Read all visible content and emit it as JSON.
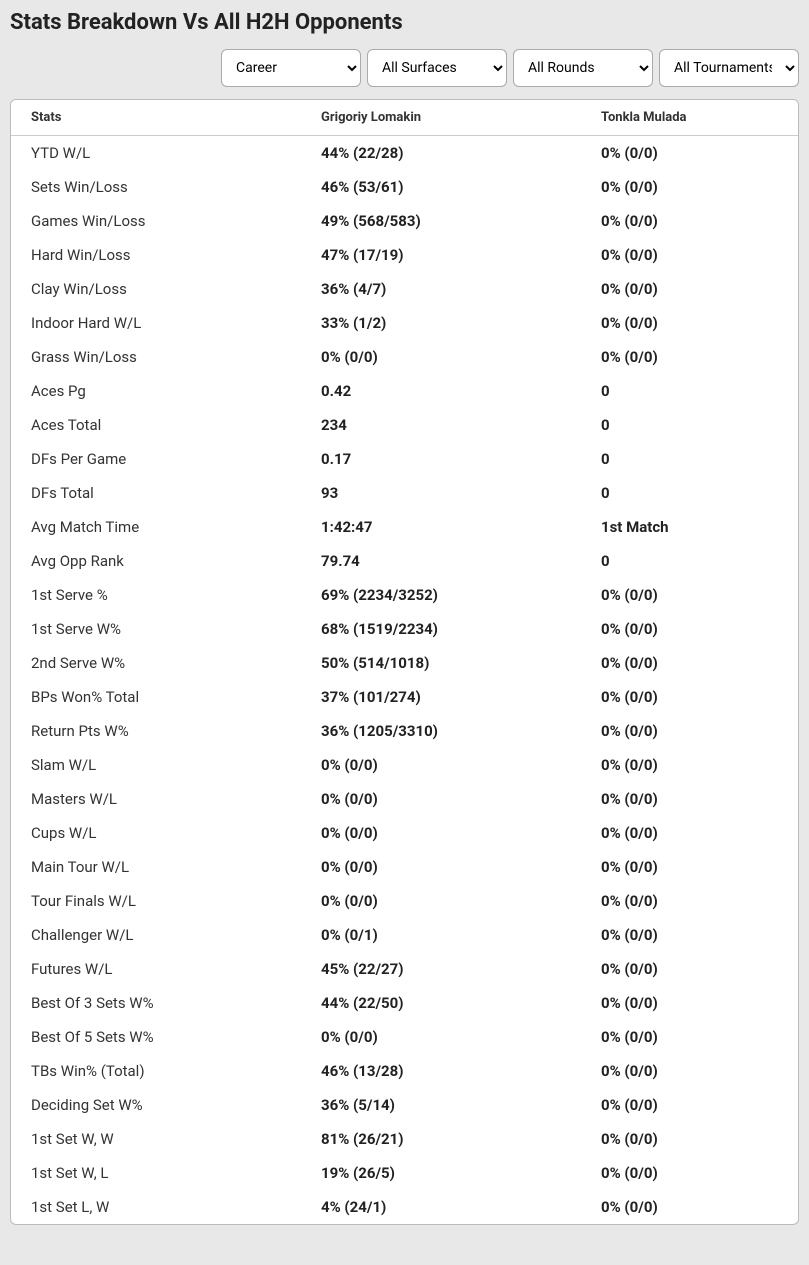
{
  "title": "Stats Breakdown Vs All H2H Opponents",
  "filters": {
    "career": {
      "selected": "Career"
    },
    "surfaces": {
      "selected": "All Surfaces"
    },
    "rounds": {
      "selected": "All Rounds"
    },
    "tournaments": {
      "selected": "All Tournaments"
    }
  },
  "columns": {
    "stats": "Stats",
    "p1": "Grigoriy Lomakin",
    "p2": "Tonkla Mulada"
  },
  "rows": [
    {
      "label": "YTD W/L",
      "p1": "44% (22/28)",
      "p2": "0% (0/0)"
    },
    {
      "label": "Sets Win/Loss",
      "p1": "46% (53/61)",
      "p2": "0% (0/0)"
    },
    {
      "label": "Games Win/Loss",
      "p1": "49% (568/583)",
      "p2": "0% (0/0)"
    },
    {
      "label": "Hard Win/Loss",
      "p1": "47% (17/19)",
      "p2": "0% (0/0)"
    },
    {
      "label": "Clay Win/Loss",
      "p1": "36% (4/7)",
      "p2": "0% (0/0)"
    },
    {
      "label": "Indoor Hard W/L",
      "p1": "33% (1/2)",
      "p2": "0% (0/0)"
    },
    {
      "label": "Grass Win/Loss",
      "p1": "0% (0/0)",
      "p2": "0% (0/0)"
    },
    {
      "label": "Aces Pg",
      "p1": "0.42",
      "p2": "0"
    },
    {
      "label": "Aces Total",
      "p1": "234",
      "p2": "0"
    },
    {
      "label": "DFs Per Game",
      "p1": "0.17",
      "p2": "0"
    },
    {
      "label": "DFs Total",
      "p1": "93",
      "p2": "0"
    },
    {
      "label": "Avg Match Time",
      "p1": "1:42:47",
      "p2": "1st Match"
    },
    {
      "label": "Avg Opp Rank",
      "p1": "79.74",
      "p2": "0"
    },
    {
      "label": "1st Serve %",
      "p1": "69% (2234/3252)",
      "p2": "0% (0/0)"
    },
    {
      "label": "1st Serve W%",
      "p1": "68% (1519/2234)",
      "p2": "0% (0/0)"
    },
    {
      "label": "2nd Serve W%",
      "p1": "50% (514/1018)",
      "p2": "0% (0/0)"
    },
    {
      "label": "BPs Won% Total",
      "p1": "37% (101/274)",
      "p2": "0% (0/0)"
    },
    {
      "label": "Return Pts W%",
      "p1": "36% (1205/3310)",
      "p2": "0% (0/0)"
    },
    {
      "label": "Slam W/L",
      "p1": "0% (0/0)",
      "p2": "0% (0/0)"
    },
    {
      "label": "Masters W/L",
      "p1": "0% (0/0)",
      "p2": "0% (0/0)"
    },
    {
      "label": "Cups W/L",
      "p1": "0% (0/0)",
      "p2": "0% (0/0)"
    },
    {
      "label": "Main Tour W/L",
      "p1": "0% (0/0)",
      "p2": "0% (0/0)"
    },
    {
      "label": "Tour Finals W/L",
      "p1": "0% (0/0)",
      "p2": "0% (0/0)"
    },
    {
      "label": "Challenger W/L",
      "p1": "0% (0/1)",
      "p2": "0% (0/0)"
    },
    {
      "label": "Futures W/L",
      "p1": "45% (22/27)",
      "p2": "0% (0/0)"
    },
    {
      "label": "Best Of 3 Sets W%",
      "p1": "44% (22/50)",
      "p2": "0% (0/0)"
    },
    {
      "label": "Best Of 5 Sets W%",
      "p1": "0% (0/0)",
      "p2": "0% (0/0)"
    },
    {
      "label": "TBs Win% (Total)",
      "p1": "46% (13/28)",
      "p2": "0% (0/0)"
    },
    {
      "label": "Deciding Set W%",
      "p1": "36% (5/14)",
      "p2": "0% (0/0)"
    },
    {
      "label": "1st Set W, W",
      "p1": "81% (26/21)",
      "p2": "0% (0/0)"
    },
    {
      "label": "1st Set W, L",
      "p1": "19% (26/5)",
      "p2": "0% (0/0)"
    },
    {
      "label": "1st Set L, W",
      "p1": "4% (24/1)",
      "p2": "0% (0/0)"
    }
  ],
  "colors": {
    "page_bg": "#e8e8e8",
    "panel_bg": "#ffffff",
    "border": "#bbbbbb",
    "text": "#222222"
  }
}
